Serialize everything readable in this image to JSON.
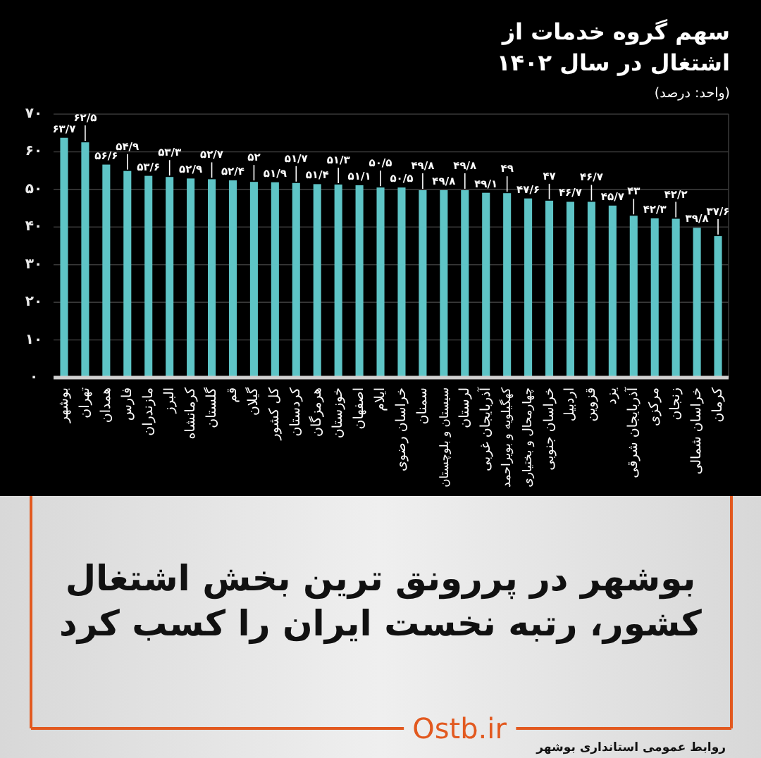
{
  "chart_data": {
    "type": "bar",
    "title": "سهم گروه خدمات از اشتغال در سال ۱۴۰۲",
    "subtitle": "(واحد: درصد)",
    "categories": [
      "بوشهر",
      "تهران",
      "همدان",
      "فارس",
      "مازندران",
      "البرز",
      "کرمانشاه",
      "گلستان",
      "قم",
      "گیلان",
      "کل کشور",
      "کردستان",
      "هرمزگان",
      "خوزستان",
      "اصفهان",
      "ایلام",
      "خراسان رضوی",
      "سمنان",
      "سیستان و بلوچستان",
      "لرستان",
      "آذربایجان غربی",
      "کهگیلویه و بویراحمد",
      "چهارمحال و بختیاری",
      "خراسان جنوبی",
      "اردبیل",
      "قزوین",
      "یزد",
      "آذربایجان شرقی",
      "مرکزی",
      "زنجان",
      "خراسان شمالی",
      "کرمان"
    ],
    "values": [
      63.7,
      62.5,
      56.6,
      54.9,
      53.6,
      53.3,
      52.9,
      52.7,
      52.4,
      52,
      51.9,
      51.7,
      51.4,
      51.3,
      51.1,
      50.5,
      50.5,
      49.8,
      49.8,
      49.8,
      49.1,
      49,
      47.6,
      47,
      46.7,
      46.7,
      45.7,
      43,
      42.3,
      42.2,
      39.8,
      37.6
    ],
    "value_labels": [
      "۶۳/۷",
      "۶۲/۵",
      "۵۶/۶",
      "۵۴/۹",
      "۵۳/۶",
      "۵۳/۳",
      "۵۲/۹",
      "۵۲/۷",
      "۵۲/۴",
      "۵۲",
      "۵۱/۹",
      "۵۱/۷",
      "۵۱/۴",
      "۵۱/۳",
      "۵۱/۱",
      "۵۰/۵",
      "۵۰/۵",
      "۴۹/۸",
      "۴۹/۸",
      "۴۹/۸",
      "۴۹/۱",
      "۴۹",
      "۴۷/۶",
      "۴۷",
      "۴۶/۷",
      "۴۶/۷",
      "۴۵/۷",
      "۴۳",
      "۴۲/۳",
      "۴۲/۲",
      "۳۹/۸",
      "۳۷/۶"
    ],
    "color": "#5ec4c6",
    "ylim": [
      0,
      70
    ],
    "yticks": [
      {
        "value": 0,
        "label": "۰"
      },
      {
        "value": 10,
        "label": "۱۰"
      },
      {
        "value": 20,
        "label": "۲۰"
      },
      {
        "value": 30,
        "label": "۳۰"
      },
      {
        "value": 40,
        "label": "۴۰"
      },
      {
        "value": 50,
        "label": "۵۰"
      },
      {
        "value": 60,
        "label": "۶۰"
      },
      {
        "value": 70,
        "label": "۷۰"
      }
    ],
    "grid": "y",
    "annotations": [
      "بوشهر در پررونق ترین بخش اشتغال کشور، رتبه نخست ایران را کسب کرد",
      "Ostb.ir",
      "روابط عمومی استانداری بوشهر"
    ]
  }
}
